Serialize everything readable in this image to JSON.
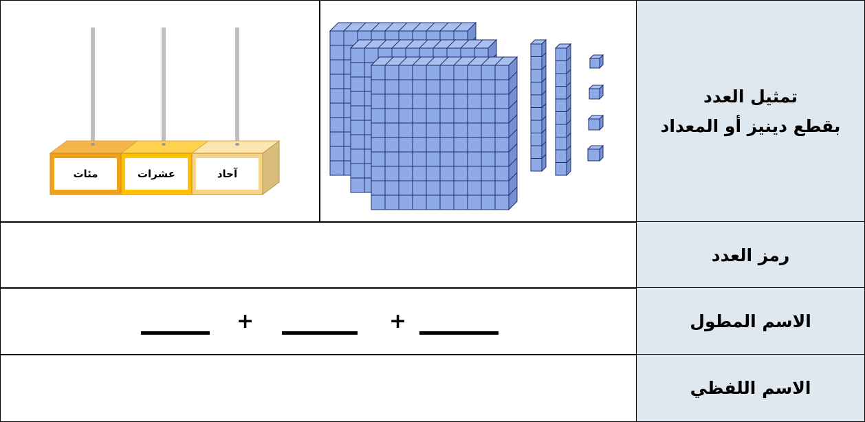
{
  "table": {
    "rows": [
      {
        "header": [
          "تمثيل العدد",
          "بقطع دينيز أو المعداد"
        ]
      },
      {
        "header": [
          "رمز العدد"
        ]
      },
      {
        "header": [
          "الاسم المطول"
        ],
        "operators": [
          "+",
          "+"
        ]
      },
      {
        "header": [
          "الاسم اللفظي"
        ]
      }
    ]
  },
  "abacus": {
    "places": [
      "مئات",
      "عشرات",
      "آحاد"
    ]
  }
}
